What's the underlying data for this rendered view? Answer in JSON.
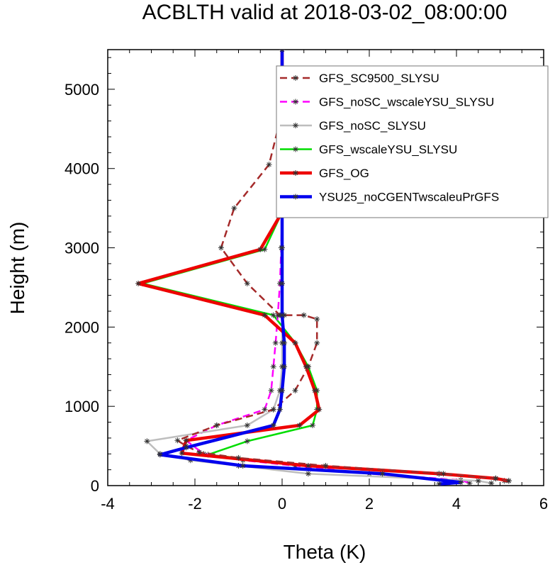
{
  "chart_data": {
    "type": "line",
    "title": "ACBLTH valid at 2018-03-02_08:00:00",
    "xlabel": "Theta (K)",
    "ylabel": "Height (m)",
    "xlim": [
      -4,
      6
    ],
    "ylim": [
      0,
      5500
    ],
    "xticks": [
      -4,
      -2,
      0,
      2,
      4,
      6
    ],
    "yticks": [
      0,
      1000,
      2000,
      3000,
      4000,
      5000
    ],
    "xtick_labels": [
      "-4",
      "-2",
      "0",
      "2",
      "4",
      "6"
    ],
    "ytick_labels": [
      "0",
      "1000",
      "2000",
      "3000",
      "4000",
      "5000"
    ],
    "legend_position": "top-right",
    "series": [
      {
        "name": "GFS_SC9500_SLYSU",
        "color": "#a52a2a",
        "dash": "dashed",
        "x": [
          5.2,
          4.9,
          3.7,
          1.0,
          -1.0,
          -1.9,
          -2.2,
          -2.4,
          -1.5,
          -0.2,
          0.3,
          0.6,
          0.8,
          0.8,
          0.5,
          0.05,
          -0.05,
          -0.8,
          -1.4,
          -1.1,
          -0.3,
          -0.05,
          0.0,
          0.0
        ],
        "y": [
          60,
          90,
          150,
          250,
          350,
          420,
          500,
          570,
          760,
          960,
          1200,
          1500,
          1800,
          2100,
          2150,
          2150,
          2150,
          2550,
          3000,
          3500,
          4050,
          4600,
          5200,
          5500
        ]
      },
      {
        "name": "GFS_noSC_wscaleYSU_SLYSU",
        "color": "#ff00ff",
        "dash": "dashed",
        "x": [
          4.3,
          4.1,
          2.0,
          0.3,
          -0.9,
          -1.8,
          -2.2,
          -1.5,
          -0.4,
          -0.25,
          -0.2,
          -0.15,
          -0.1,
          -0.05,
          -0.02,
          0.0,
          0.0,
          0.0
        ],
        "y": [
          30,
          70,
          150,
          250,
          320,
          400,
          570,
          760,
          960,
          1200,
          1500,
          1800,
          2150,
          2550,
          3000,
          3500,
          4600,
          5500
        ]
      },
      {
        "name": "GFS_noSC_SLYSU",
        "color": "#bebebe",
        "dash": "solid",
        "x": [
          4.8,
          4.5,
          0.6,
          -1.0,
          -2.1,
          -2.8,
          -3.1,
          -0.8,
          -0.2,
          -0.05,
          0.0,
          0.0,
          0.0,
          0.0,
          0.0,
          0.0,
          0.0
        ],
        "y": [
          30,
          60,
          150,
          250,
          320,
          400,
          560,
          760,
          960,
          1200,
          1500,
          1800,
          2150,
          2550,
          3000,
          3500,
          5500
        ]
      },
      {
        "name": "GFS_wscaleYSU_SLYSU",
        "color": "#00dd00",
        "dash": "solid",
        "x": [
          5.1,
          4.9,
          3.6,
          0.6,
          -1.7,
          -0.8,
          0.7,
          0.8,
          0.8,
          0.6,
          0.3,
          -0.2,
          -3.2,
          -0.4,
          0.0,
          0.0
        ],
        "y": [
          60,
          90,
          150,
          250,
          390,
          560,
          760,
          960,
          1200,
          1500,
          1800,
          2150,
          2550,
          2980,
          3450,
          5500
        ]
      },
      {
        "name": "GFS_OG",
        "color": "#ee0000",
        "dash": "solid",
        "x": [
          5.2,
          4.9,
          3.6,
          0.6,
          -2.3,
          -2.2,
          0.4,
          0.85,
          0.75,
          0.55,
          0.3,
          -0.4,
          -3.3,
          -0.5,
          0.0,
          0.0
        ],
        "y": [
          60,
          90,
          150,
          250,
          410,
          570,
          760,
          960,
          1200,
          1500,
          1800,
          2150,
          2550,
          2980,
          3450,
          5500
        ]
      },
      {
        "name": "YSU25_noCGENTwscaleuPrGFS",
        "color": "#0000ee",
        "dash": "solid",
        "x": [
          3.6,
          4.1,
          2.3,
          -0.9,
          -2.8,
          -2.2,
          -0.2,
          -0.05,
          0.0,
          0.05,
          0.05,
          0.0,
          0.0,
          0.0,
          0.0
        ],
        "y": [
          20,
          40,
          150,
          250,
          390,
          480,
          760,
          960,
          1200,
          1500,
          1800,
          2150,
          2550,
          3000,
          5500
        ]
      }
    ]
  }
}
